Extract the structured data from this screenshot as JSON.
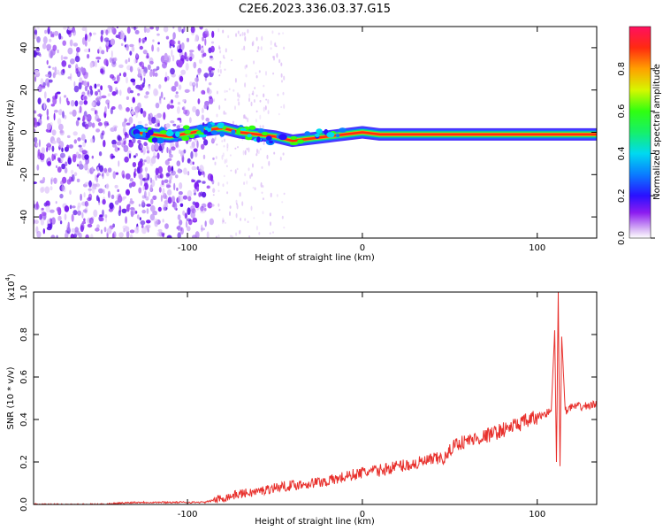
{
  "title": "C2E6.2023.336.03.37.G15",
  "chart_data": [
    {
      "type": "heatmap",
      "title": "C2E6.2023.336.03.37.G15",
      "xlabel": "Height of straight line (km)",
      "ylabel": "Frequency (Hz)",
      "xlim": [
        -188,
        134
      ],
      "ylim": [
        -50,
        50
      ],
      "x_ticks": [
        -100,
        0,
        100
      ],
      "y_ticks": [
        -40,
        -20,
        0,
        20,
        40
      ],
      "colorbar": {
        "label": "Normalized spectral amplitude",
        "range": [
          0,
          1
        ],
        "ticks": [
          "0.0",
          "0.2",
          "0.4",
          "0.6",
          "0.8"
        ]
      },
      "signal_line": {
        "x_start": -130,
        "x_end": 134,
        "frequency_trace": [
          [
            -130,
            0
          ],
          [
            -110,
            -2
          ],
          [
            -90,
            1
          ],
          [
            -80,
            2
          ],
          [
            -70,
            0
          ],
          [
            -60,
            -1
          ],
          [
            -50,
            -2
          ],
          [
            -40,
            -4
          ],
          [
            -30,
            -3
          ],
          [
            -20,
            -2
          ],
          [
            -10,
            -1
          ],
          [
            0,
            0
          ],
          [
            10,
            -1
          ],
          [
            20,
            -1
          ],
          [
            40,
            -1
          ],
          [
            60,
            -1
          ],
          [
            80,
            -1
          ],
          [
            100,
            -1
          ],
          [
            108,
            -1
          ],
          [
            134,
            -1
          ]
        ]
      },
      "noise_region": [
        -188,
        -85
      ]
    },
    {
      "type": "line",
      "xlabel": "Height of straight line (km)",
      "ylabel": "SNR (10 * v/v)",
      "y_multiplier": "(x10",
      "y_multiplier_exp": "4",
      "xlim": [
        -188,
        134
      ],
      "ylim": [
        0,
        1.0
      ],
      "x_ticks": [
        -100,
        0,
        100
      ],
      "y_ticks": [
        "0.0",
        "0.2",
        "0.4",
        "0.6",
        "0.8",
        "1.0"
      ],
      "series": [
        {
          "color": "#e8302c",
          "x": [
            -188,
            -170,
            -150,
            -130,
            -110,
            -90,
            -80,
            -70,
            -60,
            -50,
            -40,
            -30,
            -20,
            -10,
            0,
            10,
            20,
            30,
            40,
            48,
            52,
            60,
            70,
            80,
            90,
            100,
            105,
            108,
            110,
            111,
            112,
            113,
            114,
            116,
            120,
            125,
            134
          ],
          "y": [
            0.0,
            0.0,
            0.0,
            0.01,
            0.01,
            0.01,
            0.03,
            0.05,
            0.06,
            0.08,
            0.09,
            0.1,
            0.11,
            0.13,
            0.15,
            0.16,
            0.18,
            0.19,
            0.21,
            0.22,
            0.28,
            0.3,
            0.32,
            0.35,
            0.38,
            0.41,
            0.43,
            0.44,
            0.82,
            0.2,
            1.0,
            0.18,
            0.79,
            0.44,
            0.46,
            0.46,
            0.47
          ]
        }
      ]
    }
  ]
}
